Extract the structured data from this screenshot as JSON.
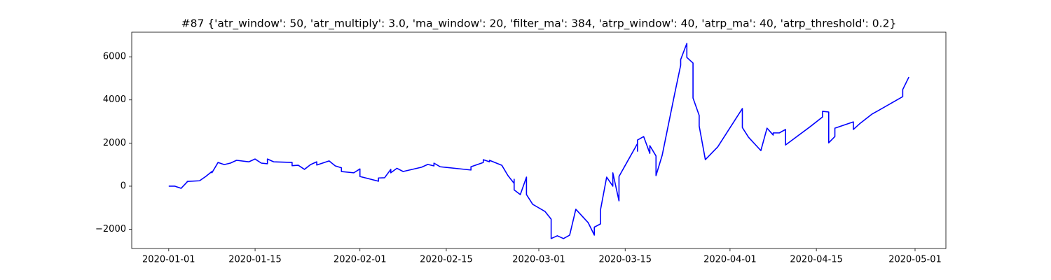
{
  "chart_data": {
    "type": "line",
    "title": "#87 {'atr_window': 50, 'atr_multiply': 3.0, 'ma_window': 20, 'filter_ma': 384, 'atrp_window': 40, 'atrp_ma': 40, 'atrp_threshold': 0.2}",
    "x": [
      "2020-01-01",
      "2020-01-02",
      "2020-01-03",
      "2020-01-04",
      "2020-01-04",
      "2020-01-06",
      "2020-01-07",
      "2020-01-08",
      "2020-01-08",
      "2020-01-09",
      "2020-01-10",
      "2020-01-11",
      "2020-01-12",
      "2020-01-14",
      "2020-01-15",
      "2020-01-16",
      "2020-01-17",
      "2020-01-17",
      "2020-01-18",
      "2020-01-21",
      "2020-01-21",
      "2020-01-22",
      "2020-01-23",
      "2020-01-24",
      "2020-01-25",
      "2020-01-25",
      "2020-01-27",
      "2020-01-28",
      "2020-01-29",
      "2020-01-29",
      "2020-01-31",
      "2020-02-01",
      "2020-02-01",
      "2020-02-04",
      "2020-02-04",
      "2020-02-05",
      "2020-02-06",
      "2020-02-06",
      "2020-02-07",
      "2020-02-08",
      "2020-02-11",
      "2020-02-12",
      "2020-02-13",
      "2020-02-13",
      "2020-02-14",
      "2020-02-17",
      "2020-02-19",
      "2020-02-19",
      "2020-02-21",
      "2020-02-21",
      "2020-02-22",
      "2020-02-22",
      "2020-02-24",
      "2020-02-25",
      "2020-02-26",
      "2020-02-26",
      "2020-02-26",
      "2020-02-27",
      "2020-02-28",
      "2020-02-28",
      "2020-02-29",
      "2020-03-02",
      "2020-03-03",
      "2020-03-03",
      "2020-03-04",
      "2020-03-05",
      "2020-03-06",
      "2020-03-07",
      "2020-03-09",
      "2020-03-10",
      "2020-03-10",
      "2020-03-11",
      "2020-03-11",
      "2020-03-12",
      "2020-03-13",
      "2020-03-13",
      "2020-03-14",
      "2020-03-14",
      "2020-03-17",
      "2020-03-17",
      "2020-03-17",
      "2020-03-18",
      "2020-03-19",
      "2020-03-19",
      "2020-03-20",
      "2020-03-20",
      "2020-03-21",
      "2020-03-23",
      "2020-03-24",
      "2020-03-24",
      "2020-03-25",
      "2020-03-25",
      "2020-03-26",
      "2020-03-26",
      "2020-03-27",
      "2020-03-27",
      "2020-03-28",
      "2020-03-30",
      "2020-04-03",
      "2020-04-03",
      "2020-04-04",
      "2020-04-06",
      "2020-04-07",
      "2020-04-08",
      "2020-04-08",
      "2020-04-09",
      "2020-04-10",
      "2020-04-10",
      "2020-04-14",
      "2020-04-16",
      "2020-04-16",
      "2020-04-17",
      "2020-04-17",
      "2020-04-17",
      "2020-04-18",
      "2020-04-18",
      "2020-04-21",
      "2020-04-21",
      "2020-04-22",
      "2020-04-24",
      "2020-04-25",
      "2020-04-29",
      "2020-04-29",
      "2020-04-30"
    ],
    "series": [
      {
        "color": "#0000ff",
        "values": [
          0,
          0,
          -100,
          200,
          220,
          250,
          450,
          680,
          620,
          1100,
          1000,
          1070,
          1200,
          1130,
          1260,
          1070,
          1040,
          1260,
          1130,
          1100,
          950,
          970,
          780,
          1000,
          1130,
          980,
          1170,
          940,
          850,
          680,
          620,
          800,
          450,
          230,
          380,
          390,
          780,
          620,
          830,
          680,
          880,
          1010,
          940,
          1070,
          900,
          810,
          750,
          900,
          1100,
          1230,
          1130,
          1200,
          970,
          490,
          130,
          320,
          -170,
          -390,
          420,
          -390,
          -840,
          -1170,
          -1530,
          -2430,
          -2300,
          -2430,
          -2270,
          -1070,
          -1690,
          -2270,
          -1900,
          -1750,
          -1100,
          420,
          0,
          620,
          -680,
          450,
          1980,
          1620,
          2140,
          2300,
          1520,
          1880,
          1400,
          490,
          1430,
          4250,
          5610,
          5870,
          6620,
          5970,
          5710,
          4090,
          3280,
          2790,
          1230,
          1820,
          3600,
          2720,
          2270,
          1650,
          2690,
          2370,
          2470,
          2470,
          2630,
          1910,
          2760,
          3210,
          3470,
          3440,
          2850,
          2010,
          2300,
          2690,
          2980,
          2630,
          2890,
          3340,
          3500,
          4150,
          4480,
          5060
        ]
      }
    ],
    "xlim": [
      "2019-12-26",
      "2020-05-06"
    ],
    "xticks": [
      "2020-01-01",
      "2020-01-15",
      "2020-02-01",
      "2020-02-15",
      "2020-03-01",
      "2020-03-15",
      "2020-04-01",
      "2020-04-15",
      "2020-05-01"
    ],
    "ylim": [
      -2890,
      7140
    ],
    "yticks": [
      {
        "value": -2000,
        "label": "−2000"
      },
      0,
      2000,
      4000,
      6000
    ]
  }
}
